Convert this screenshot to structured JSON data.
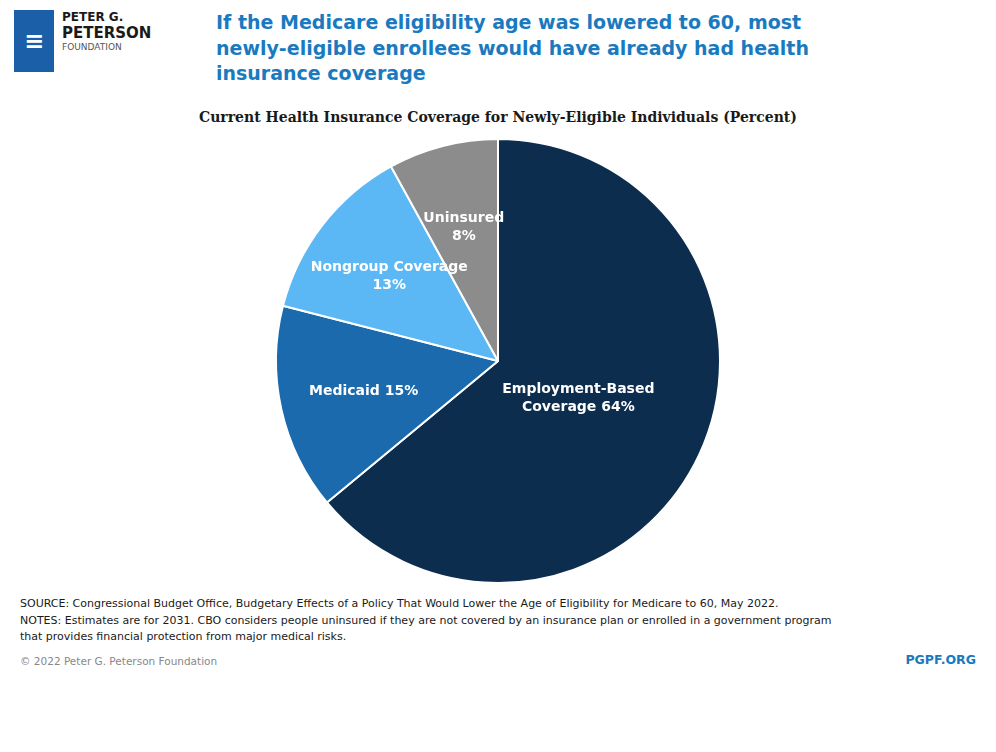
{
  "chart_data": {
    "type": "pie",
    "title": "If the Medicare eligibility age was lowered to 60, most\nnewly-eligible enrollees would have already had health\ninsurance coverage",
    "subtitle": "Current Health Insurance Coverage for Newly-Eligible Individuals (Percent)",
    "categories": [
      "Employment-Based Coverage",
      "Medicaid",
      "Nongroup Coverage",
      "Uninsured"
    ],
    "values": [
      64,
      15,
      13,
      8
    ],
    "value_labels": [
      "Employment-Based\nCoverage 64%",
      "Medicaid 15%",
      "Nongroup Coverage\n13%",
      "Uninsured\n8%"
    ],
    "colors": [
      "#0d2d4e",
      "#1a6aad",
      "#5bb8f5",
      "#8c8c8c"
    ],
    "data_labels": true,
    "annotations": [
      "≡",
      "PETER G.",
      "PETERSON",
      "FOUNDATION",
      "SOURCE: Congressional Budget Office, Budgetary Effects of a Policy That Would Lower the Age of Eligibility for Medicare to 60, May 2022.\nNOTES: Estimates are for 2031. CBO considers people uninsured if they are not covered by an insurance plan or enrolled in a government program\nthat provides financial protection from major medical risks.",
      "© 2022 Peter G. Peterson Foundation",
      "PGPF.ORG"
    ]
  }
}
